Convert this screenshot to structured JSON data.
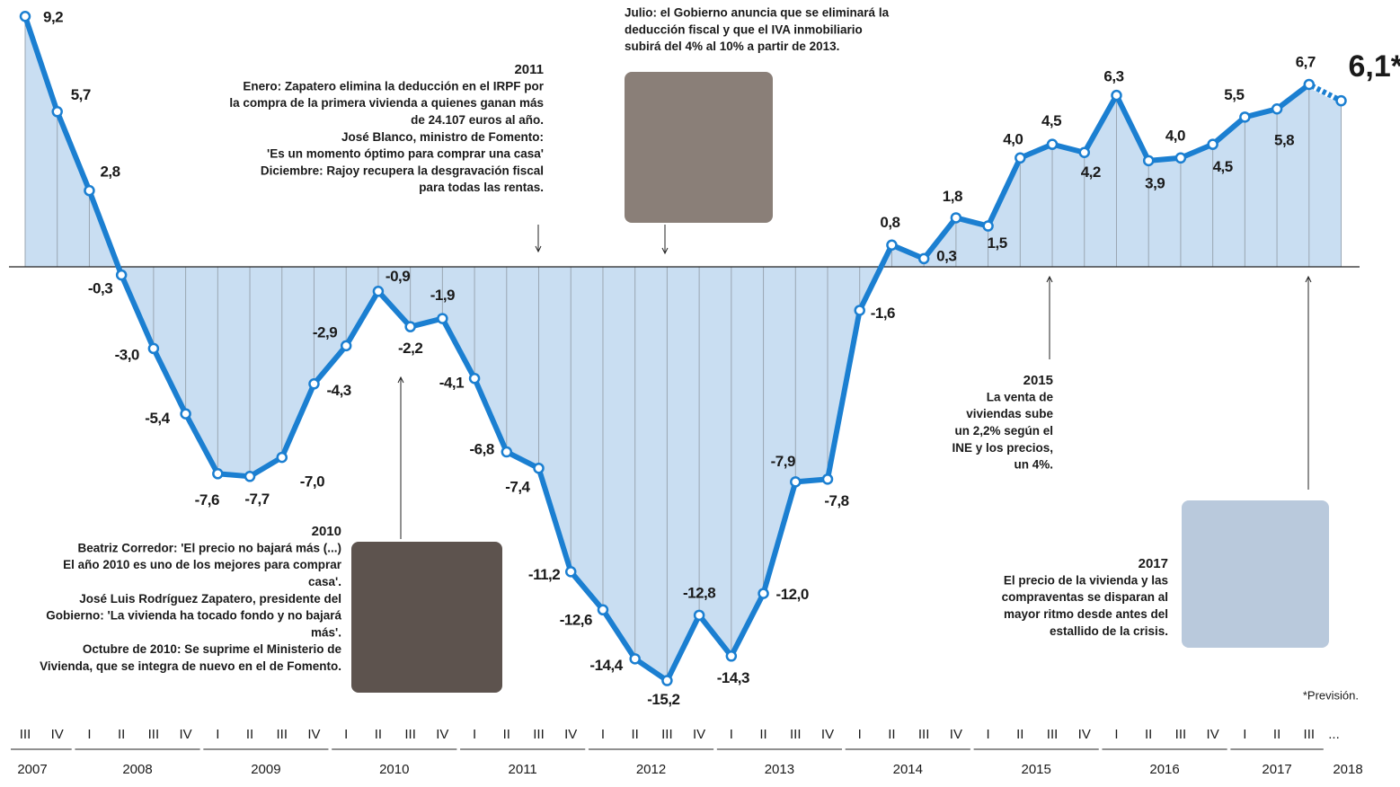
{
  "chart_data": {
    "type": "line",
    "categories": [
      "III",
      "IV",
      "I",
      "II",
      "III",
      "IV",
      "I",
      "II",
      "III",
      "IV",
      "I",
      "II",
      "III",
      "IV",
      "I",
      "II",
      "III",
      "IV",
      "I",
      "II",
      "III",
      "IV",
      "I",
      "II",
      "III",
      "IV",
      "I",
      "II",
      "III",
      "IV",
      "I",
      "II",
      "III",
      "IV",
      "I",
      "II",
      "III",
      "IV",
      "I",
      "II",
      "III",
      "..."
    ],
    "years": [
      "2007",
      "2008",
      "2009",
      "2010",
      "2011",
      "2012",
      "2013",
      "2014",
      "2015",
      "2016",
      "2017",
      "2018"
    ],
    "values": [
      9.2,
      5.7,
      2.8,
      -0.3,
      -3.0,
      -5.4,
      -7.6,
      -7.7,
      -7.0,
      -4.3,
      -2.9,
      -0.9,
      -2.2,
      -1.9,
      -4.1,
      -6.8,
      -7.4,
      -11.2,
      -12.6,
      -14.4,
      -15.2,
      -12.8,
      -14.3,
      -12.0,
      -7.9,
      -7.8,
      -1.6,
      0.8,
      0.3,
      1.8,
      1.5,
      4.0,
      4.5,
      4.2,
      6.3,
      3.9,
      4.0,
      4.5,
      5.5,
      5.8,
      6.7,
      6.1
    ],
    "value_labels": [
      "9,2",
      "5,7",
      "2,8",
      "-0,3",
      "-3,0",
      "-5,4",
      "-7,6",
      "-7,7",
      "-7,0",
      "-4,3",
      "-2,9",
      "-0,9",
      "-2,2",
      "-1,9",
      "-4,1",
      "-6,8",
      "-7,4",
      "-11,2",
      "-12,6",
      "-14,4",
      "-15,2",
      "-12,8",
      "-14,3",
      "-12,0",
      "-7,9",
      "-7,8",
      "-1,6",
      "0,8",
      "0,3",
      "1,8",
      "1,5",
      "4,0",
      "4,5",
      "4,2",
      "6,3",
      "3,9",
      "4,0",
      "4,5",
      "5,5",
      "5,8",
      "6,7",
      "6,1*"
    ],
    "color": "#1b7fd1",
    "area_color": "#c9def2",
    "dotted_last_segment": true,
    "annotations": [
      {
        "title": "2011",
        "lines": [
          "Enero: Zapatero elimina la deducción en el IRPF por",
          "la compra de la primera vivienda a quienes ganan más",
          "de 24.107 euros al año.",
          "José Blanco, ministro de Fomento:",
          "'Es un momento óptimo para comprar una casa'",
          "Diciembre: Rajoy recupera la desgravación fiscal",
          "para todas las rentas."
        ]
      },
      {
        "lines": [
          "Julio: el Gobierno anuncia que se eliminará la",
          "deducción fiscal y que el IVA inmobiliario",
          "subirá del 4% al 10% a partir de 2013."
        ]
      },
      {
        "title": "2010",
        "lines": [
          "Beatriz Corredor: 'El precio no bajará más (...)",
          "El año 2010 es uno de los mejores para comprar",
          "casa'.",
          "José Luis Rodríguez Zapatero, presidente del",
          "Gobierno: 'La vivienda ha tocado fondo y no bajará",
          "más'.",
          "Octubre de 2010: Se suprime el Ministerio de",
          "Vivienda, que se integra de nuevo en el de Fomento."
        ]
      },
      {
        "title": "2015",
        "lines": [
          "La venta de",
          "viviendas sube",
          "un 2,2% según el",
          "INE y los precios,",
          "un 4%."
        ]
      },
      {
        "title": "2017",
        "lines": [
          "El precio de la vivienda y las",
          "compraventas se disparan al",
          "mayor ritmo desde antes del",
          "estallido de la crisis."
        ]
      }
    ],
    "footnote": "*Previsión."
  }
}
